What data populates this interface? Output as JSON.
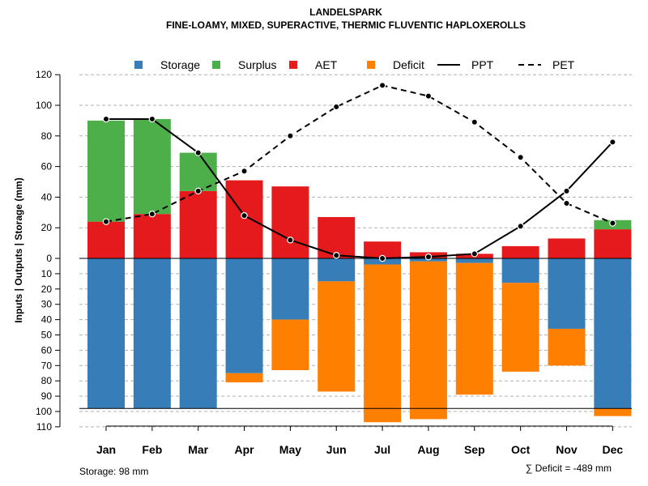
{
  "chart_data": {
    "type": "bar",
    "title": "LANDELSPARK",
    "subtitle": "FINE-LOAMY, MIXED, SUPERACTIVE, THERMIC FLUVENTIC HAPLOXEROLLS",
    "ylabel": "Inputs | Outputs | Storage    (mm)",
    "categories": [
      "Jan",
      "Feb",
      "Mar",
      "Apr",
      "May",
      "Jun",
      "Jul",
      "Aug",
      "Sep",
      "Oct",
      "Nov",
      "Dec"
    ],
    "ylim": [
      -110,
      120
    ],
    "y_ticks_positive": [
      0,
      20,
      40,
      60,
      80,
      100,
      120
    ],
    "y_ticks_negative": [
      10,
      20,
      30,
      40,
      50,
      60,
      70,
      80,
      90,
      100,
      110
    ],
    "grid": true,
    "legend": [
      {
        "key": "storage",
        "label": "Storage",
        "symbol": "square",
        "color": "#377EB8"
      },
      {
        "key": "surplus",
        "label": "Surplus",
        "symbol": "square",
        "color": "#4DAF4A"
      },
      {
        "key": "aet",
        "label": "AET",
        "symbol": "square",
        "color": "#E41A1C"
      },
      {
        "key": "deficit",
        "label": "Deficit",
        "symbol": "square",
        "color": "#FF7F00"
      },
      {
        "key": "ppt",
        "label": "PPT",
        "symbol": "solid-line",
        "color": "#000000"
      },
      {
        "key": "pet",
        "label": "PET",
        "symbol": "dashed-line",
        "color": "#000000"
      }
    ],
    "series": [
      {
        "name": "AET",
        "color": "#E41A1C",
        "values": [
          24,
          29,
          44,
          51,
          47,
          27,
          11,
          4,
          3,
          8,
          13,
          19
        ]
      },
      {
        "name": "Surplus",
        "color": "#4DAF4A",
        "values": [
          66,
          62,
          25,
          0,
          0,
          0,
          0,
          0,
          0,
          0,
          0,
          6
        ]
      },
      {
        "name": "Storage",
        "color": "#377EB8",
        "values": [
          98,
          98,
          98,
          75,
          40,
          15,
          4,
          2,
          3,
          16,
          46,
          98
        ]
      },
      {
        "name": "Deficit",
        "color": "#FF7F00",
        "values": [
          0,
          0,
          0,
          6,
          33,
          72,
          103,
          103,
          86,
          58,
          24,
          5
        ]
      },
      {
        "name": "PPT",
        "color": "#000000",
        "values": [
          91,
          91,
          69,
          28,
          12,
          2,
          0,
          1,
          3,
          21,
          44,
          76
        ]
      },
      {
        "name": "PET",
        "color": "#000000",
        "values": [
          24,
          29,
          44,
          57,
          80,
          99,
          113,
          106,
          89,
          66,
          36,
          23
        ]
      }
    ],
    "storage_capacity": 98,
    "storage_note": "Storage: 98 mm",
    "deficit_note": "∑ Deficit = -489 mm"
  }
}
